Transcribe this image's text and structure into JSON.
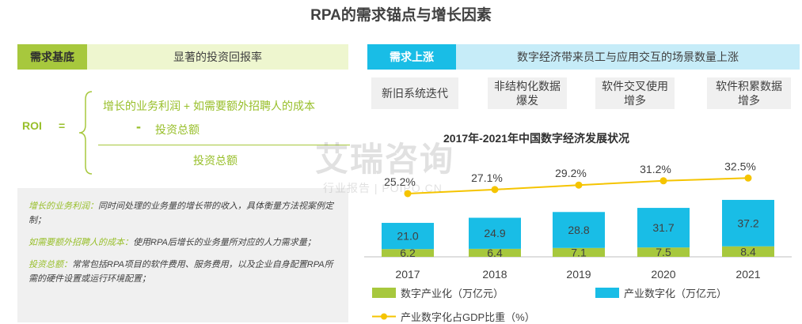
{
  "title": "RPA的需求锚点与增长因素",
  "left": {
    "tag": "需求基底",
    "bar": "显著的投资回报率",
    "roi_label": "ROI",
    "eq": "=",
    "numerator_line1": "增长的业务利润 + 如需要额外招聘人的成本",
    "numerator_line2_sign": "-",
    "numerator_line2": "投资总额",
    "denominator": "投资总额",
    "notes": [
      {
        "key": "增长的业务利润：",
        "text": "同时间处理的业务量的增长带的收入，具体衡量方法视案例定制；"
      },
      {
        "key": "如需要额外招聘人的成本：",
        "text": "使用RPA后增长的业务量所对应的人力需求量；"
      },
      {
        "key": "投资总额：",
        "text": "常常包括RPA项目的软件费用、服务费用，以及企业自身配置RPA所需的硬件设置或运行环境配置；"
      }
    ]
  },
  "right": {
    "tag": "需求上涨",
    "bar": "数字经济带来员工与应用交互的场景数量上涨",
    "chips": [
      {
        "line1": "新旧系统迭代",
        "line2": ""
      },
      {
        "line1": "非结构化数据",
        "line2": "爆发"
      },
      {
        "line1": "软件交叉使用",
        "line2": "增多"
      },
      {
        "line1": "软件积累数据",
        "line2": "增多"
      }
    ]
  },
  "watermark": {
    "main": "艾瑞咨询",
    "sub": "行业报告 | POIPO.CN"
  },
  "colors": {
    "green": "#a7c83d",
    "blue": "#19bde6",
    "line": "#f5c400"
  },
  "chart_data": {
    "type": "bar",
    "title": "2017年-2021年中国数字经济发展状况",
    "categories": [
      "2017",
      "2018",
      "2019",
      "2020",
      "2021"
    ],
    "series": [
      {
        "name": "数字产业化（万亿元）",
        "values": [
          6.2,
          6.4,
          7.1,
          7.5,
          8.4
        ],
        "color": "#a7c83d"
      },
      {
        "name": "产业数字化（万亿元）",
        "values": [
          21.0,
          24.9,
          28.8,
          31.7,
          37.2
        ],
        "color": "#19bde6"
      }
    ],
    "line_series": {
      "name": "产业数字化占GDP比重（%）",
      "values": [
        25.2,
        27.1,
        29.2,
        31.2,
        32.5
      ],
      "labels": [
        "25.2%",
        "27.1%",
        "29.2%",
        "31.2%",
        "32.5%"
      ],
      "color": "#f5c400"
    },
    "stacked": true,
    "grid": false,
    "legend": "bottom"
  }
}
